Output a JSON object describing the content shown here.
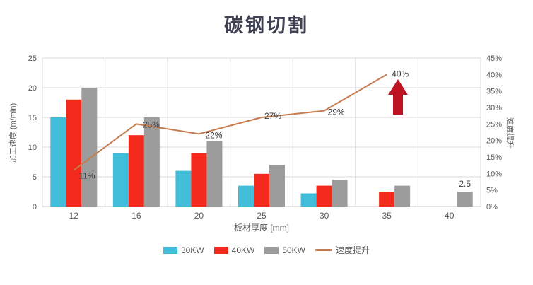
{
  "title": "碳钢切割",
  "chart_data": {
    "type": "bar",
    "title": "碳钢切割",
    "categories": [
      "12",
      "16",
      "20",
      "25",
      "30",
      "35",
      "40"
    ],
    "series": [
      {
        "name": "30KW",
        "color": "#41bdd9",
        "values": [
          15,
          9,
          6,
          3.5,
          2.2,
          null,
          null
        ]
      },
      {
        "name": "40KW",
        "color": "#f3291b",
        "values": [
          18,
          12,
          9,
          5.5,
          3.5,
          2.5,
          null
        ]
      },
      {
        "name": "50KW",
        "color": "#9c9c9c",
        "values": [
          20,
          15,
          11,
          7,
          4.5,
          3.5,
          2.5
        ]
      }
    ],
    "line_series": {
      "name": "速度提升",
      "color": "#c67c4f",
      "values": [
        11,
        25,
        22,
        27,
        29,
        40,
        null
      ],
      "labels": [
        "11%",
        "25%",
        "22%",
        "27%",
        "29%",
        "40%",
        ""
      ]
    },
    "bar_value_label": {
      "text": "2.5",
      "category_index": 6,
      "series_index": 2
    },
    "xlabel": "板材厚度 [mm]",
    "ylabel_left": "加工速度 (m/min)",
    "ylabel_right": "速度提升",
    "yleft_ticks": [
      "0",
      "5",
      "10",
      "15",
      "20",
      "25"
    ],
    "yleft_range": [
      0,
      25
    ],
    "yright_ticks": [
      "0%",
      "5%",
      "10%",
      "15%",
      "20%",
      "25%",
      "30%",
      "35%",
      "40%",
      "45%"
    ],
    "yright_range": [
      0,
      45
    ],
    "grid": true,
    "legend_position": "bottom",
    "legend": [
      {
        "label": "30KW",
        "swatch": "rect",
        "color": "#41bdd9"
      },
      {
        "label": "40KW",
        "swatch": "rect",
        "color": "#f3291b"
      },
      {
        "label": "50KW",
        "swatch": "rect",
        "color": "#9c9c9c"
      },
      {
        "label": "速度提升",
        "swatch": "line",
        "color": "#c67c4f"
      }
    ]
  },
  "annotations": {
    "up_arrow": {
      "color": "#bf1222"
    }
  },
  "colors": {
    "grid": "#d9d9d9",
    "axis_line": "#c9c9c9",
    "axis_text": "#595959",
    "label_text": "#3a3a3a",
    "title_text": "#3e4151",
    "background": "#ffffff"
  }
}
